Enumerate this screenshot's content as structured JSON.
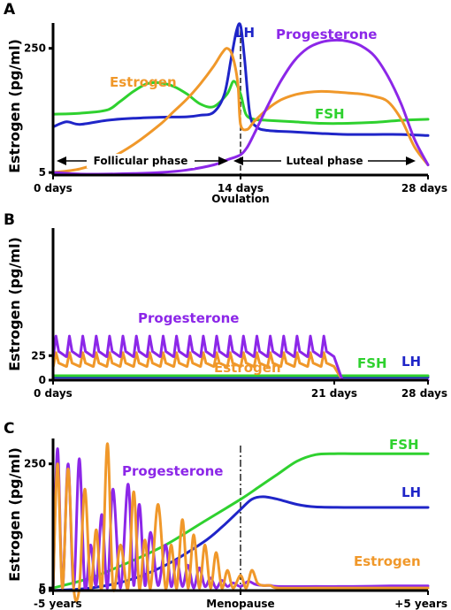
{
  "colors": {
    "LH": "#1f25c8",
    "FSH": "#2fd12f",
    "Estrogen": "#f0982a",
    "Progesterone": "#8c27e8",
    "axis": "#000000"
  },
  "chart_data": [
    {
      "panel": "A",
      "type": "line",
      "ylabel": "Estrogen (pg/ml)",
      "xlim": [
        0,
        28
      ],
      "ylim": [
        0,
        300
      ],
      "yticks": [
        {
          "label": "5",
          "value": 5
        },
        {
          "label": "250",
          "value": 250
        }
      ],
      "xticks": [
        {
          "label": "0 days",
          "value": 0
        },
        {
          "label": "14 days",
          "value": 14
        },
        {
          "label": "28 days",
          "value": 28
        }
      ],
      "ovulation_label": "Ovulation",
      "phases": {
        "follicular": "Follicular phase",
        "luteal": "Luteal phase"
      },
      "series": [
        {
          "name": "LH",
          "x": [
            0,
            1,
            2,
            4,
            6,
            8,
            10,
            11,
            12,
            12.8,
            13.3,
            13.7,
            14,
            14.3,
            14.7,
            15.2,
            16,
            18,
            20,
            22,
            24,
            26,
            28
          ],
          "y": [
            95,
            105,
            100,
            108,
            112,
            114,
            115,
            118,
            124,
            160,
            230,
            285,
            295,
            230,
            120,
            95,
            88,
            85,
            82,
            80,
            80,
            80,
            78
          ]
        },
        {
          "name": "FSH",
          "x": [
            0,
            2,
            4,
            5,
            6,
            7,
            8,
            9,
            10,
            11,
            12,
            13,
            13.5,
            14,
            14.4,
            15,
            16,
            18,
            20,
            22,
            24,
            26,
            28
          ],
          "y": [
            120,
            122,
            128,
            145,
            165,
            180,
            182,
            175,
            160,
            140,
            135,
            160,
            185,
            160,
            120,
            110,
            108,
            105,
            102,
            102,
            104,
            108,
            110
          ]
        },
        {
          "name": "Estrogen",
          "x": [
            0,
            2,
            4,
            6,
            8,
            9,
            10,
            11,
            12,
            12.6,
            13,
            13.4,
            13.8,
            14,
            14.5,
            15,
            16,
            17,
            18,
            19,
            20,
            21,
            22,
            23,
            24,
            25,
            26,
            27,
            28
          ],
          "y": [
            5,
            12,
            30,
            60,
            100,
            125,
            150,
            180,
            215,
            240,
            250,
            235,
            180,
            100,
            90,
            105,
            130,
            148,
            158,
            163,
            165,
            164,
            162,
            160,
            155,
            145,
            110,
            55,
            20
          ]
        },
        {
          "name": "Progesterone",
          "x": [
            0,
            2,
            4,
            6,
            8,
            10,
            12,
            13,
            14,
            14.5,
            15,
            16,
            17,
            18,
            19,
            20,
            21,
            22,
            23,
            24,
            25,
            26,
            27,
            28
          ],
          "y": [
            5,
            2,
            2,
            3,
            5,
            10,
            20,
            30,
            40,
            55,
            80,
            135,
            185,
            225,
            250,
            262,
            266,
            264,
            255,
            235,
            195,
            140,
            70,
            20
          ]
        }
      ],
      "labels": [
        "LH",
        "Progesterone",
        "Estrogen",
        "FSH"
      ]
    },
    {
      "panel": "B",
      "type": "line",
      "ylabel": "Estrogen (pg/ml)",
      "xlim": [
        0,
        28
      ],
      "ylim": [
        0,
        155
      ],
      "yticks": [
        {
          "label": "0",
          "value": 0
        },
        {
          "label": "25",
          "value": 25
        }
      ],
      "xticks": [
        {
          "label": "0 days",
          "value": 0
        },
        {
          "label": "21 days",
          "value": 21
        },
        {
          "label": "28 days",
          "value": 28
        }
      ],
      "series": [
        {
          "name": "LH",
          "x": [
            0,
            28
          ],
          "y": [
            3,
            3
          ]
        },
        {
          "name": "FSH",
          "x": [
            0,
            28
          ],
          "y": [
            4.5,
            4.5
          ]
        },
        {
          "name": "Progesterone",
          "pattern": "daily pulses",
          "start": 0,
          "end": 21,
          "pulses": 21,
          "baseline": 24,
          "peak": 45,
          "after": 0
        },
        {
          "name": "Estrogen",
          "pattern": "daily pulses",
          "start": 0,
          "end": 21,
          "pulses": 21,
          "baseline": 14,
          "peak": 28,
          "after": 0
        }
      ],
      "labels": [
        "Progesterone",
        "Estrogen",
        "FSH",
        "LH"
      ]
    },
    {
      "panel": "C",
      "type": "line",
      "ylabel": "Estrogen (pg/ml)",
      "xlim": [
        -5,
        5
      ],
      "ylim": [
        0,
        300
      ],
      "yticks": [
        {
          "label": "0",
          "value": 0
        },
        {
          "label": "5",
          "value": 5
        },
        {
          "label": "250",
          "value": 250
        }
      ],
      "xticks": [
        {
          "label": "-5 years",
          "value": -5
        },
        {
          "label": "Menopause",
          "value": 0
        },
        {
          "label": "+5 years",
          "value": 5
        }
      ],
      "series": [
        {
          "name": "FSH",
          "x": [
            -5,
            -4,
            -3,
            -2,
            -1,
            0,
            0.5,
            1,
            1.5,
            2,
            2.5,
            3,
            4,
            5
          ],
          "y": [
            5,
            25,
            55,
            90,
            135,
            180,
            205,
            230,
            255,
            268,
            270,
            270,
            270,
            270
          ]
        },
        {
          "name": "LH",
          "x": [
            -5,
            -4,
            -3,
            -2,
            -1,
            -0.5,
            0,
            0.3,
            0.6,
            1,
            1.5,
            2,
            3,
            4,
            5
          ],
          "y": [
            0,
            5,
            20,
            50,
            95,
            125,
            160,
            180,
            185,
            180,
            170,
            165,
            164,
            164,
            164
          ]
        },
        {
          "name": "Progesterone",
          "x": [
            -5,
            -4.88,
            -4.75,
            -4.6,
            -4.45,
            -4.3,
            -4.15,
            -4,
            -3.85,
            -3.7,
            -3.55,
            -3.4,
            -3.2,
            -3,
            -2.85,
            -2.7,
            -2.55,
            -2.4,
            -2.2,
            -2,
            -1.85,
            -1.7,
            -1.55,
            -1.4,
            -1.25,
            -1.1,
            -0.95,
            -0.8,
            -0.65,
            -0.5,
            -0.35,
            -0.2,
            0,
            0.2,
            0.4,
            0.6,
            0.8,
            1,
            2,
            3,
            4,
            5
          ],
          "y": [
            0,
            280,
            5,
            250,
            8,
            260,
            5,
            90,
            10,
            150,
            5,
            200,
            5,
            210,
            10,
            170,
            10,
            115,
            10,
            90,
            8,
            60,
            8,
            50,
            5,
            45,
            8,
            25,
            5,
            20,
            8,
            15,
            8,
            18,
            12,
            10,
            10,
            8,
            8,
            8,
            9,
            9
          ]
        },
        {
          "name": "Estrogen",
          "x": [
            -5,
            -4.88,
            -4.75,
            -4.6,
            -4.45,
            -4.3,
            -4.15,
            -4,
            -3.85,
            -3.7,
            -3.55,
            -3.4,
            -3.2,
            -3,
            -2.85,
            -2.7,
            -2.55,
            -2.4,
            -2.2,
            -2,
            -1.85,
            -1.7,
            -1.55,
            -1.4,
            -1.25,
            -1.1,
            -0.95,
            -0.8,
            -0.65,
            -0.5,
            -0.35,
            -0.2,
            0,
            0.15,
            0.3,
            0.45,
            0.6,
            0.8,
            1,
            2,
            3,
            4,
            5
          ],
          "y": [
            0,
            250,
            5,
            240,
            5,
            5,
            200,
            5,
            120,
            5,
            290,
            5,
            90,
            5,
            195,
            5,
            100,
            5,
            170,
            5,
            90,
            5,
            140,
            5,
            110,
            5,
            90,
            5,
            75,
            5,
            40,
            5,
            30,
            5,
            40,
            15,
            10,
            10,
            5,
            5,
            5,
            5,
            5
          ]
        }
      ],
      "labels": [
        "FSH",
        "Progesterone",
        "LH",
        "Estrogen"
      ]
    }
  ]
}
